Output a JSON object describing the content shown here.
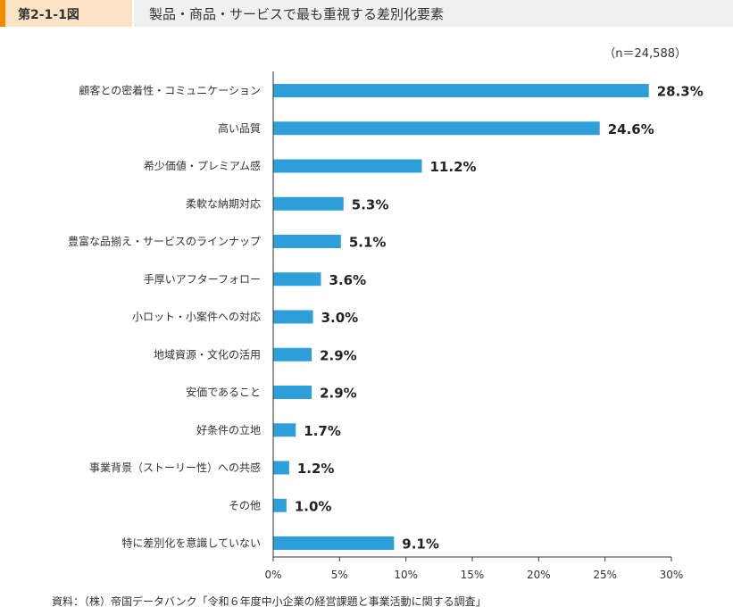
{
  "header": {
    "figure_label": "第2-1-1図",
    "title": "製品・商品・サービスで最も重視する差別化要素"
  },
  "sample_note": "（n＝24,588）",
  "source": "資料：（株）帝国データバンク「令和６年度中小企業の経営課題と事業活動に関する調査」",
  "colors": {
    "bar": "#2e9fd8",
    "accent": "#f08a00",
    "axis": "#333333"
  },
  "chart_data": {
    "type": "bar",
    "orientation": "horizontal",
    "categories": [
      "顧客との密着性・コミュニケーション",
      "高い品質",
      "希少価値・プレミアム感",
      "柔軟な納期対応",
      "豊富な品揃え・サービスのラインナップ",
      "手厚いアフターフォロー",
      "小ロット・小案件への対応",
      "地域資源・文化の活用",
      "安価であること",
      "好条件の立地",
      "事業背景（ストーリー性）への共感",
      "その他",
      "特に差別化を意識していない"
    ],
    "values": [
      28.3,
      24.6,
      11.2,
      5.3,
      5.1,
      3.6,
      3.0,
      2.9,
      2.9,
      1.7,
      1.2,
      1.0,
      9.1
    ],
    "value_labels": [
      "28.3%",
      "24.6%",
      "11.2%",
      "5.3%",
      "5.1%",
      "3.6%",
      "3.0%",
      "2.9%",
      "2.9%",
      "1.7%",
      "1.2%",
      "1.0%",
      "9.1%"
    ],
    "xlim": [
      0,
      30
    ],
    "xticks": [
      0,
      5,
      10,
      15,
      20,
      25,
      30
    ],
    "xtick_labels": [
      "0%",
      "5%",
      "10%",
      "15%",
      "20%",
      "25%",
      "30%"
    ],
    "grid": false
  }
}
